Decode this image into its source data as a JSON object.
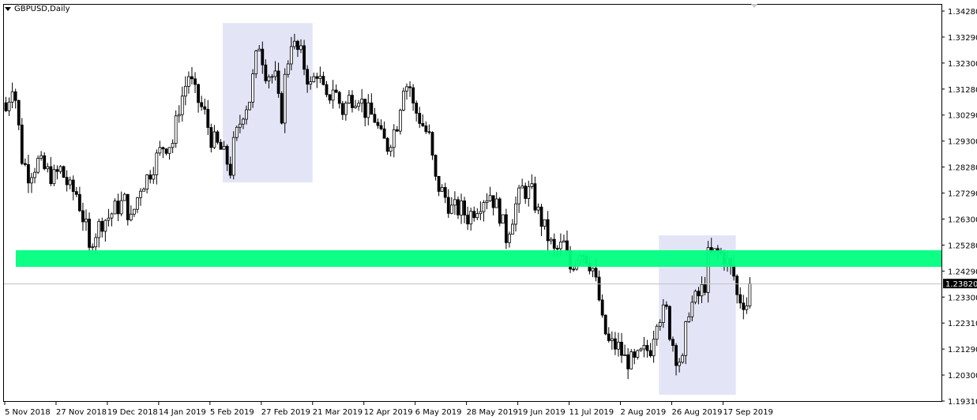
{
  "header": {
    "symbol_timeframe": "GBPUSD,Daily",
    "menu_icon": "triangle-down-icon"
  },
  "colors": {
    "background": "#ffffff",
    "bull_body": "#ffffff",
    "bear_body": "#000000",
    "candle_outline": "#000000",
    "zone_band": "#00ff80",
    "highlight_box": "#e3e5f7",
    "last_price_line": "#c0c0c0",
    "last_price_label_bg": "#000000"
  },
  "chart_data": {
    "type": "candlestick",
    "title": "GBPUSD,Daily",
    "y_ticks": [
      "1.34280",
      "1.33290",
      "1.32300",
      "1.31280",
      "1.30290",
      "1.29300",
      "1.28280",
      "1.27290",
      "1.26300",
      "1.25280",
      "1.24290",
      "1.23300",
      "1.22310",
      "1.21290",
      "1.20300",
      "1.19310"
    ],
    "ylim": [
      1.1931,
      1.3428
    ],
    "x_ticks": [
      "5 Nov 2018",
      "27 Nov 2018",
      "19 Dec 2018",
      "14 Jan 2019",
      "5 Feb 2019",
      "27 Feb 2019",
      "21 Mar 2019",
      "12 Apr 2019",
      "6 May 2019",
      "28 May 2019",
      "19 Jun 2019",
      "11 Jul 2019",
      "2 Aug 2019",
      "26 Aug 2019",
      "17 Sep 2019"
    ],
    "bars_per_x_tick": 16,
    "last_price": "1.23820",
    "grid": false,
    "close_path": [
      [
        0,
        1.3046
      ],
      [
        2,
        1.3152
      ],
      [
        3,
        1.3092
      ],
      [
        5,
        1.2864
      ],
      [
        7,
        1.2804
      ],
      [
        10,
        1.2849
      ],
      [
        12,
        1.2819
      ],
      [
        15,
        1.2789
      ],
      [
        17,
        1.2819
      ],
      [
        20,
        1.2743
      ],
      [
        22,
        1.2728
      ],
      [
        25,
        1.2592
      ],
      [
        26,
        1.2501
      ],
      [
        27,
        1.2561
      ],
      [
        30,
        1.2622
      ],
      [
        32,
        1.2637
      ],
      [
        34,
        1.2667
      ],
      [
        37,
        1.2698
      ],
      [
        39,
        1.2622
      ],
      [
        42,
        1.2758
      ],
      [
        44,
        1.2789
      ],
      [
        47,
        1.2864
      ],
      [
        49,
        1.291
      ],
      [
        52,
        1.2925
      ],
      [
        54,
        1.3061
      ],
      [
        57,
        1.3183
      ],
      [
        59,
        1.3107
      ],
      [
        62,
        1.3031
      ],
      [
        64,
        1.294
      ],
      [
        67,
        1.2895
      ],
      [
        69,
        1.2849
      ],
      [
        70,
        1.2819
      ],
      [
        71,
        1.291
      ],
      [
        74,
        1.3046
      ],
      [
        76,
        1.3092
      ],
      [
        78,
        1.3243
      ],
      [
        79,
        1.3304
      ],
      [
        81,
        1.3198
      ],
      [
        84,
        1.3167
      ],
      [
        85,
        1.3076
      ],
      [
        86,
        1.3031
      ],
      [
        87,
        1.3167
      ],
      [
        89,
        1.3319
      ],
      [
        90,
        1.3289
      ],
      [
        92,
        1.3258
      ],
      [
        95,
        1.3137
      ],
      [
        97,
        1.3198
      ],
      [
        100,
        1.3076
      ],
      [
        102,
        1.3137
      ],
      [
        105,
        1.3046
      ],
      [
        107,
        1.3092
      ],
      [
        110,
        1.3107
      ],
      [
        112,
        1.3046
      ],
      [
        115,
        1.3016
      ],
      [
        117,
        1.294
      ],
      [
        119,
        1.291
      ],
      [
        122,
        1.3
      ],
      [
        124,
        1.3152
      ],
      [
        126,
        1.3137
      ],
      [
        127,
        1.3061
      ],
      [
        129,
        1.3016
      ],
      [
        132,
        1.294
      ],
      [
        134,
        1.2773
      ],
      [
        137,
        1.2713
      ],
      [
        139,
        1.2667
      ],
      [
        142,
        1.2667
      ],
      [
        144,
        1.2637
      ],
      [
        147,
        1.2683
      ],
      [
        149,
        1.2713
      ],
      [
        151,
        1.2728
      ],
      [
        154,
        1.2652
      ],
      [
        156,
        1.2561
      ],
      [
        159,
        1.2683
      ],
      [
        161,
        1.2743
      ],
      [
        164,
        1.2728
      ],
      [
        166,
        1.2652
      ],
      [
        169,
        1.2561
      ],
      [
        171,
        1.2501
      ],
      [
        174,
        1.2531
      ],
      [
        176,
        1.244
      ],
      [
        179,
        1.2516
      ],
      [
        181,
        1.2486
      ],
      [
        183,
        1.244
      ],
      [
        185,
        1.2319
      ],
      [
        186,
        1.2228
      ],
      [
        188,
        1.2152
      ],
      [
        191,
        1.2137
      ],
      [
        193,
        1.2092
      ],
      [
        196,
        1.2076
      ],
      [
        198,
        1.2107
      ],
      [
        201,
        1.2137
      ],
      [
        203,
        1.2258
      ],
      [
        206,
        1.2273
      ],
      [
        207,
        1.2198
      ],
      [
        209,
        1.2107
      ],
      [
        211,
        1.2076
      ],
      [
        212,
        1.2198
      ],
      [
        213,
        1.2289
      ],
      [
        216,
        1.2334
      ],
      [
        218,
        1.238
      ],
      [
        219,
        1.2486
      ],
      [
        222,
        1.2501
      ],
      [
        224,
        1.2486
      ],
      [
        227,
        1.241
      ],
      [
        228,
        1.2334
      ],
      [
        231,
        1.2304
      ],
      [
        232,
        1.2382
      ]
    ],
    "annotations": [
      {
        "type": "rectangle",
        "from_bar": 68,
        "to_bar": 96,
        "price_top": 1.3382,
        "price_bottom": 1.277
      },
      {
        "type": "rectangle",
        "from_bar": 204,
        "to_bar": 228,
        "price_top": 1.2567,
        "price_bottom": 1.1955
      },
      {
        "type": "zone",
        "price_top": 1.251,
        "price_bottom": 1.2446
      }
    ]
  }
}
